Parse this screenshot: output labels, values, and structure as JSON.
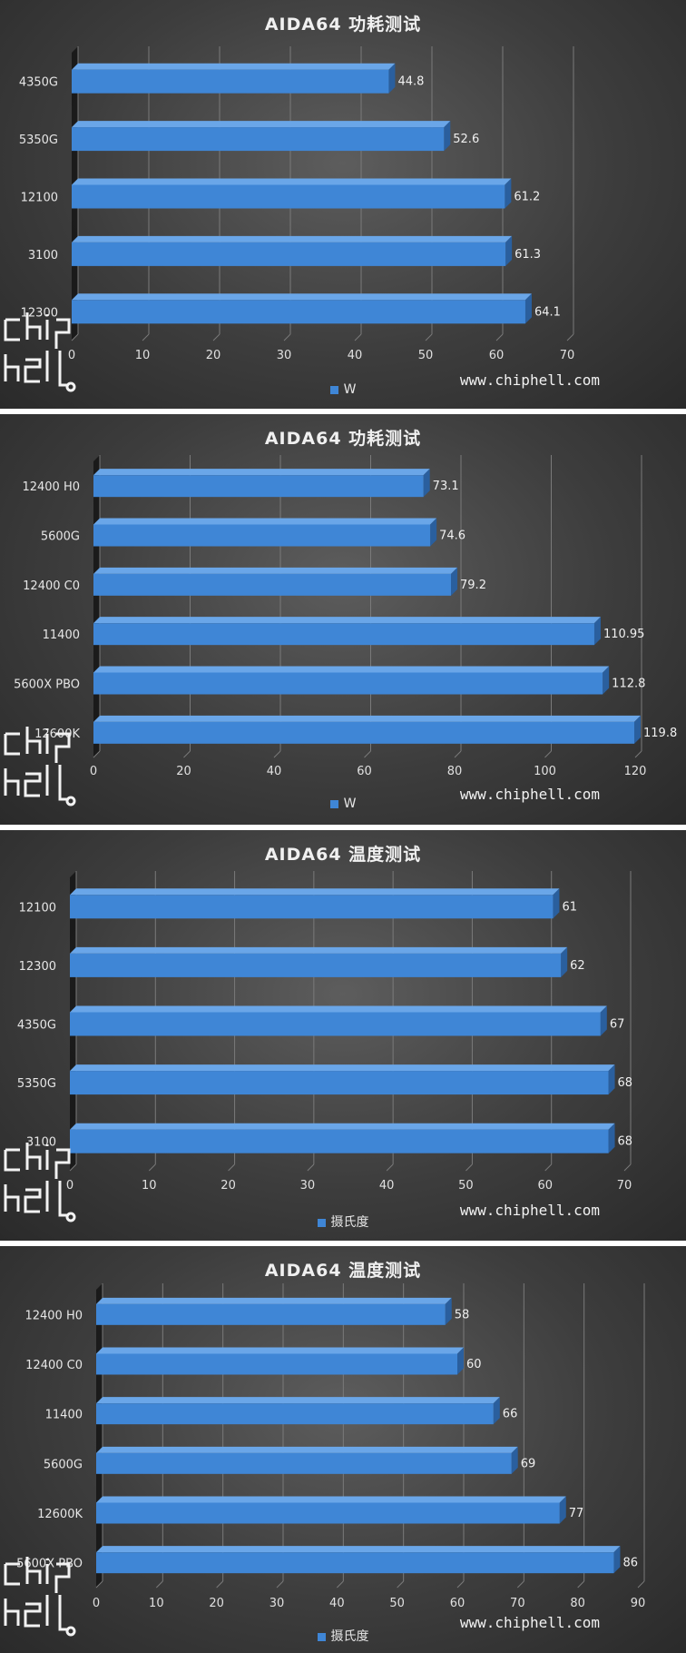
{
  "chart_data": [
    {
      "type": "bar",
      "orientation": "horizontal",
      "title": "AIDA64 功耗测试",
      "categories": [
        "4350G",
        "5350G",
        "12100",
        "3100",
        "12300"
      ],
      "series": [
        {
          "name": "W",
          "values": [
            44.8,
            52.6,
            61.2,
            61.3,
            64.1
          ]
        }
      ],
      "value_labels": [
        "44.8",
        "52.6",
        "61.2",
        "61.3",
        "64.1"
      ],
      "xlim": [
        0,
        70
      ],
      "ticks": [
        "0",
        "10",
        "20",
        "30",
        "40",
        "50",
        "60",
        "70"
      ],
      "grid": true,
      "legend": "bottom",
      "bar_color": "#3f86d6"
    },
    {
      "type": "bar",
      "orientation": "horizontal",
      "title": "AIDA64 功耗测试",
      "categories": [
        "12400 H0",
        "5600G",
        "12400 C0",
        "11400",
        "5600X PBO",
        "12600K"
      ],
      "series": [
        {
          "name": "W",
          "values": [
            73.1,
            74.6,
            79.2,
            110.95,
            112.8,
            119.8
          ]
        }
      ],
      "value_labels": [
        "73.1",
        "74.6",
        "79.2",
        "110.95",
        "112.8",
        "119.8"
      ],
      "xlim": [
        0,
        120
      ],
      "ticks": [
        "0",
        "20",
        "40",
        "60",
        "80",
        "100",
        "120"
      ],
      "grid": true,
      "legend": "bottom",
      "bar_color": "#3f86d6"
    },
    {
      "type": "bar",
      "orientation": "horizontal",
      "title": "AIDA64 温度测试",
      "categories": [
        "12100",
        "12300",
        "4350G",
        "5350G",
        "3100"
      ],
      "series": [
        {
          "name": "摄氏度",
          "values": [
            61,
            62,
            67,
            68,
            68
          ]
        }
      ],
      "value_labels": [
        "61",
        "62",
        "67",
        "68",
        "68"
      ],
      "xlim": [
        0,
        70
      ],
      "ticks": [
        "0",
        "10",
        "20",
        "30",
        "40",
        "50",
        "60",
        "70"
      ],
      "grid": true,
      "legend": "bottom",
      "bar_color": "#3f86d6"
    },
    {
      "type": "bar",
      "orientation": "horizontal",
      "title": "AIDA64 温度测试",
      "categories": [
        "12400 H0",
        "12400 C0",
        "11400",
        "5600G",
        "12600K",
        "5600X PBO"
      ],
      "series": [
        {
          "name": "摄氏度",
          "values": [
            58,
            60,
            66,
            69,
            77,
            86
          ]
        }
      ],
      "value_labels": [
        "58",
        "60",
        "66",
        "69",
        "77",
        "86"
      ],
      "xlim": [
        0,
        90
      ],
      "ticks": [
        "0",
        "10",
        "20",
        "30",
        "40",
        "50",
        "60",
        "70",
        "80",
        "90"
      ],
      "grid": true,
      "legend": "bottom",
      "bar_color": "#3f86d6"
    }
  ],
  "watermark": {
    "site": "www.chiphell.com",
    "logo_text": "chip hell"
  }
}
